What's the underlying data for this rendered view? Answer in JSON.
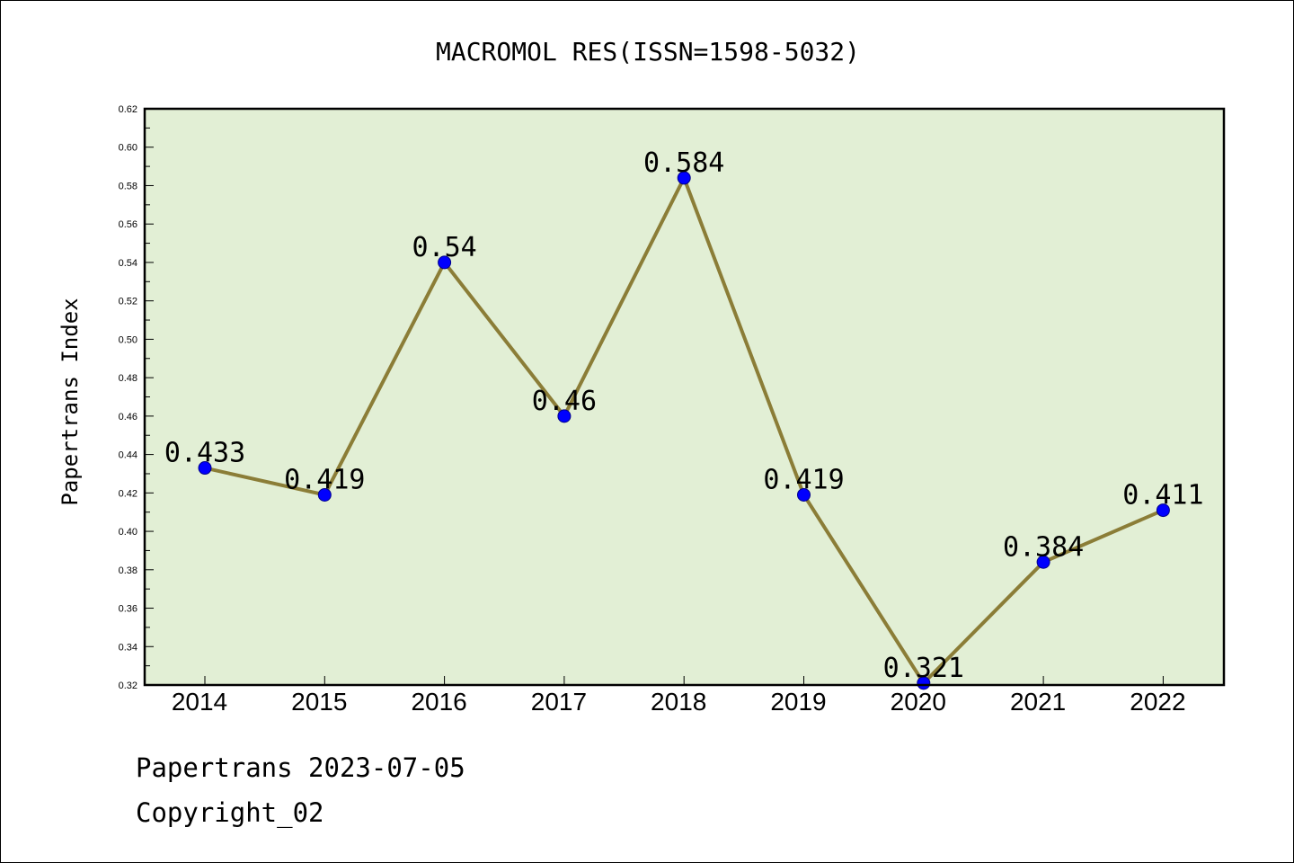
{
  "chart_data": {
    "type": "line",
    "title": "MACROMOL RES(ISSN=1598-5032)",
    "ylabel": "Papertrans Index",
    "xlabel": "",
    "categories": [
      "2014",
      "2015",
      "2016",
      "2017",
      "2018",
      "2019",
      "2020",
      "2021",
      "2022"
    ],
    "series": [
      {
        "values": [
          0.433,
          0.419,
          0.54,
          0.46,
          0.584,
          0.419,
          0.321,
          0.384,
          0.411
        ],
        "data_labels": [
          "0.433",
          "0.419",
          "0.54",
          "0.46",
          "0.584",
          "0.419",
          "0.321",
          "0.384",
          "0.411"
        ]
      }
    ],
    "ylim": [
      0.32,
      0.62
    ],
    "yticks": [
      "0.32",
      "0.34",
      "0.36",
      "0.38",
      "0.40",
      "0.42",
      "0.44",
      "0.46",
      "0.48",
      "0.50",
      "0.52",
      "0.54",
      "0.56",
      "0.58",
      "0.60",
      "0.62"
    ],
    "grid": false,
    "colors": {
      "plot_background": "#e2efd5",
      "line": "#8b7d37",
      "marker": "#0000ff",
      "marker_edge": "#00008b"
    }
  },
  "footer": {
    "line1": "Papertrans 2023-07-05",
    "line2": "Copyright_02"
  }
}
